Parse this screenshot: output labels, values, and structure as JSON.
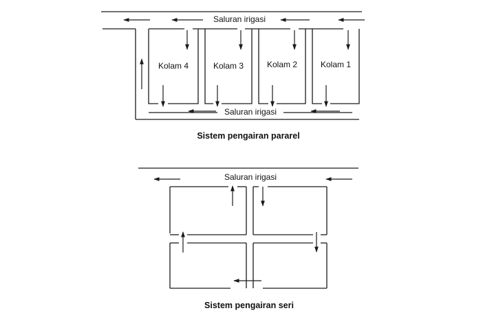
{
  "parallel": {
    "channel_top_label": "Saluran irigasi",
    "channel_bottom_label": "Saluran irigasi",
    "ponds": [
      "Kolam 4",
      "Kolam 3",
      "Kolam 2",
      "Kolam 1"
    ],
    "caption": "Sistem pengairan pararel"
  },
  "series": {
    "channel_label": "Saluran irigasi",
    "caption": "Sistem pengairan seri"
  }
}
